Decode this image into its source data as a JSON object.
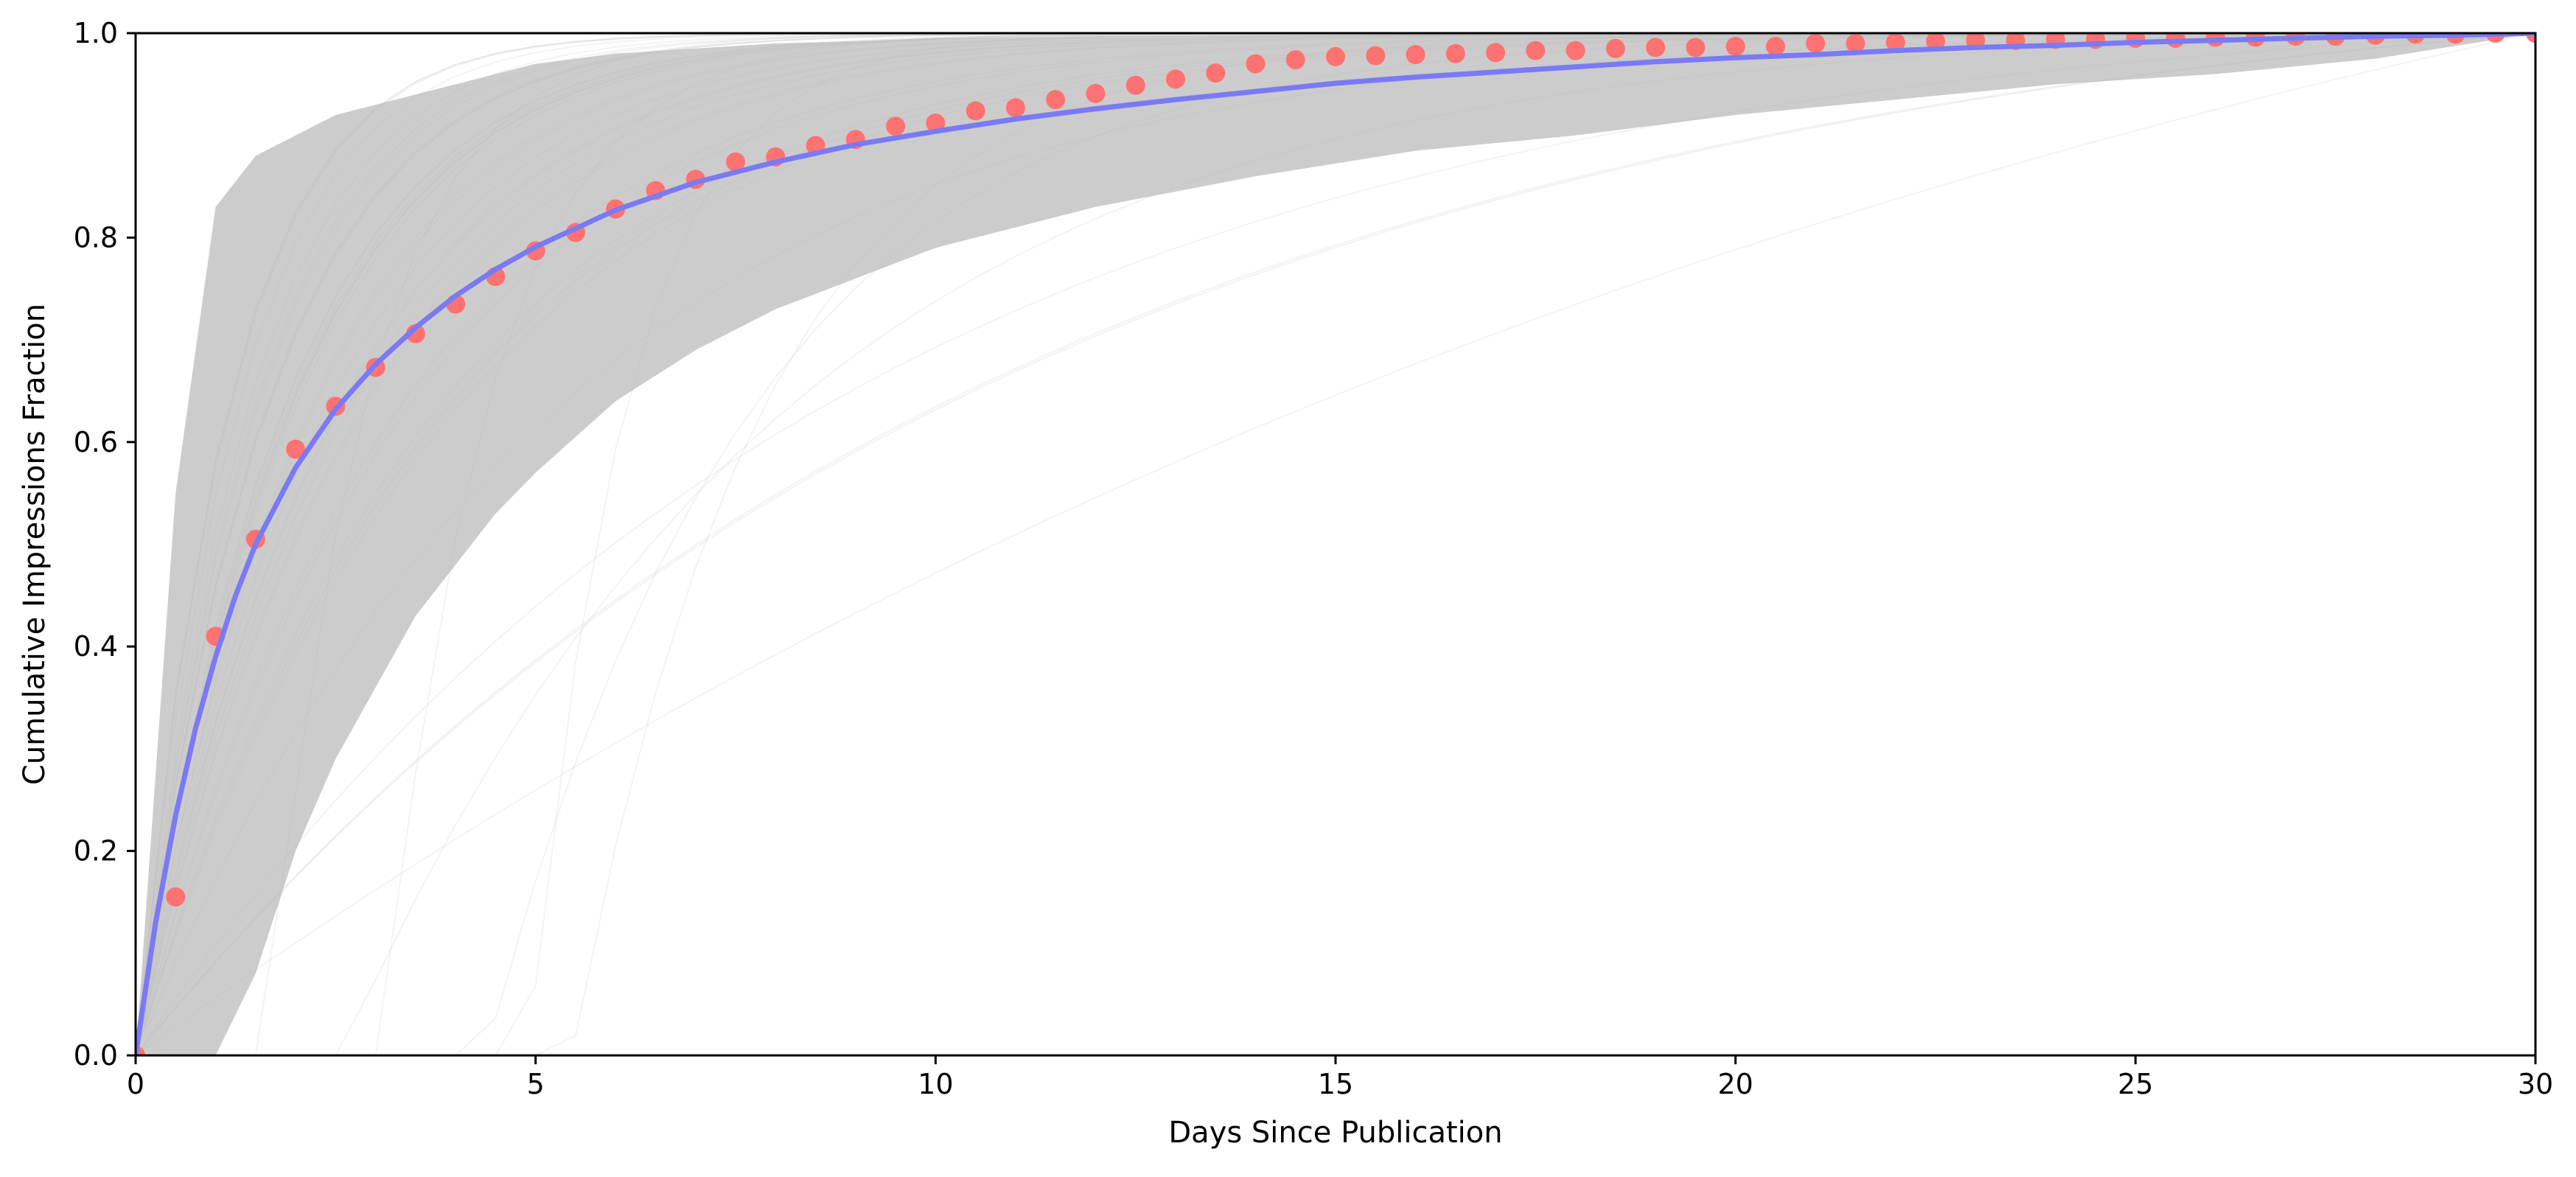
{
  "chart_data": {
    "type": "line",
    "title": "",
    "xlabel": "Days Since Publication",
    "ylabel": "Cumulative Impressions Fraction",
    "xlim": [
      0,
      30
    ],
    "ylim": [
      0,
      1
    ],
    "xticks": [
      0,
      5,
      10,
      15,
      20,
      25,
      30
    ],
    "yticks": [
      0.0,
      0.2,
      0.4,
      0.6,
      0.8,
      1.0
    ],
    "xtick_labels": [
      "0",
      "5",
      "10",
      "15",
      "20",
      "25",
      "30"
    ],
    "ytick_labels": [
      "0.0",
      "0.2",
      "0.4",
      "0.6",
      "0.8",
      "1.0"
    ],
    "grid": false,
    "legend": "none",
    "series": [
      {
        "kind": "shaded-band",
        "color": "#cccccc",
        "x": [
          0,
          0.5,
          1,
          1.5,
          2,
          2.5,
          3,
          3.5,
          4,
          4.5,
          5,
          6,
          7,
          8,
          9,
          10,
          12,
          14,
          16,
          18,
          20,
          22,
          24,
          26,
          28,
          30
        ],
        "upper": [
          0,
          0.55,
          0.83,
          0.88,
          0.9,
          0.92,
          0.93,
          0.94,
          0.95,
          0.96,
          0.97,
          0.98,
          0.985,
          0.99,
          0.992,
          0.995,
          0.997,
          0.998,
          0.999,
          1.0,
          1.0,
          1.0,
          1.0,
          1.0,
          1.0,
          1.0
        ],
        "lower": [
          0,
          0,
          0,
          0.08,
          0.2,
          0.29,
          0.36,
          0.43,
          0.48,
          0.53,
          0.57,
          0.64,
          0.69,
          0.73,
          0.76,
          0.79,
          0.83,
          0.86,
          0.885,
          0.9,
          0.92,
          0.935,
          0.95,
          0.96,
          0.975,
          1.0
        ]
      },
      {
        "kind": "individual-curves",
        "color": "#bbbbbb",
        "count": 40
      },
      {
        "kind": "points",
        "color": "#ff7272",
        "x": [
          0,
          0.5,
          1,
          1.5,
          2,
          2.5,
          3,
          3.5,
          4,
          4.5,
          5,
          5.5,
          6,
          6.5,
          7,
          7.5,
          8,
          8.5,
          9,
          9.5,
          10,
          10.5,
          11,
          11.5,
          12,
          12.5,
          13,
          13.5,
          14,
          14.5,
          15,
          15.5,
          16,
          16.5,
          17,
          17.5,
          18,
          18.5,
          19,
          19.5,
          20,
          20.5,
          21,
          21.5,
          22,
          22.5,
          23,
          23.5,
          24,
          24.5,
          25,
          25.5,
          26,
          26.5,
          27,
          27.5,
          28,
          28.5,
          29,
          29.5,
          30
        ],
        "y": [
          0.0,
          0.155,
          0.41,
          0.505,
          0.593,
          0.635,
          0.673,
          0.706,
          0.735,
          0.762,
          0.787,
          0.805,
          0.828,
          0.846,
          0.857,
          0.874,
          0.879,
          0.89,
          0.896,
          0.909,
          0.912,
          0.924,
          0.927,
          0.935,
          0.941,
          0.949,
          0.955,
          0.961,
          0.97,
          0.974,
          0.977,
          0.978,
          0.979,
          0.98,
          0.981,
          0.983,
          0.983,
          0.985,
          0.986,
          0.986,
          0.987,
          0.987,
          0.99,
          0.99,
          0.991,
          0.992,
          0.993,
          0.993,
          0.994,
          0.994,
          0.995,
          0.995,
          0.996,
          0.996,
          0.997,
          0.997,
          0.998,
          0.999,
          0.999,
          1.0,
          1.0
        ]
      },
      {
        "kind": "fitted-curve",
        "color": "#7a7af5",
        "x": [
          0,
          0.25,
          0.5,
          0.75,
          1,
          1.25,
          1.5,
          2,
          2.5,
          3,
          3.5,
          4,
          4.5,
          5,
          6,
          7,
          8,
          9,
          10,
          11,
          12,
          13,
          14,
          15,
          16,
          17,
          18,
          19,
          20,
          21,
          22,
          23,
          24,
          25,
          26,
          27,
          28,
          29,
          30
        ],
        "y": [
          0.0,
          0.13,
          0.235,
          0.32,
          0.39,
          0.45,
          0.5,
          0.575,
          0.632,
          0.676,
          0.712,
          0.743,
          0.769,
          0.791,
          0.827,
          0.854,
          0.874,
          0.891,
          0.904,
          0.916,
          0.926,
          0.935,
          0.943,
          0.951,
          0.957,
          0.962,
          0.967,
          0.972,
          0.976,
          0.979,
          0.983,
          0.986,
          0.988,
          0.991,
          0.993,
          0.995,
          0.997,
          0.998,
          1.0
        ]
      }
    ]
  }
}
